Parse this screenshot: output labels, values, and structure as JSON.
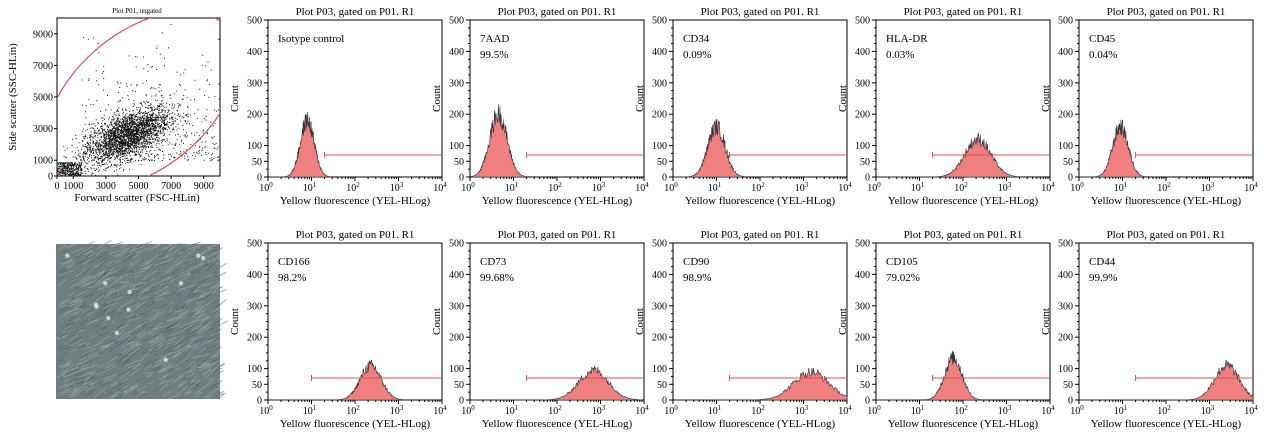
{
  "colors": {
    "histogram_fill": "#f08080",
    "gate": "#e05050",
    "dots": "#111111",
    "photo_base": "#6f7f80"
  },
  "scatter_panel": {
    "title": "Plot P01, ungated",
    "xlabel": "Forward scatter (FSC-HLin)",
    "ylabel": "Side scatter (SSC-HLin)"
  },
  "histogram_common": {
    "title": "Plot P03, gated on P01. R1",
    "xlabel": "Yellow fluorescence (YEL-HLog)",
    "ylabel": "Count"
  },
  "microscopy_image": {
    "icon": "cell-culture-photo"
  },
  "chart_data": [
    {
      "type": "scatter",
      "id": "p01",
      "title": "Plot P01, ungated",
      "xlabel": "Forward scatter (FSC-HLin)",
      "ylabel": "Side scatter (SSC-HLin)",
      "xlim": [
        0,
        10000
      ],
      "ylim": [
        0,
        10000
      ],
      "x_ticks": [
        "0",
        "1000",
        "3000",
        "5000",
        "7000",
        "9000"
      ],
      "x_tick_values": [
        0,
        1000,
        3000,
        5000,
        7000,
        9000
      ],
      "y_ticks": [
        "0",
        "1000",
        "3000",
        "5000",
        "7000",
        "9000"
      ],
      "y_tick_values": [
        0,
        1000,
        3000,
        5000,
        7000,
        9000
      ],
      "cluster": {
        "center_x": 4300,
        "center_y": 2600,
        "spread_x": 1300,
        "spread_y": 900
      },
      "gate": {
        "shape": "ellipse",
        "center_x": 5200,
        "center_y": 4800,
        "angle_deg": 40
      }
    },
    {
      "type": "histogram",
      "row": 1,
      "col": 1,
      "marker": "Isotype control",
      "percent": "",
      "peak": 8,
      "height": 180,
      "width": 0.16,
      "gate_start": 20,
      "xlim": [
        1,
        10000
      ],
      "ylim": [
        0,
        500
      ]
    },
    {
      "type": "histogram",
      "row": 1,
      "col": 2,
      "marker": "7AAD",
      "percent": "99.5%",
      "peak": 4.5,
      "height": 200,
      "width": 0.2,
      "gate_start": 20,
      "xlim": [
        1,
        10000
      ],
      "ylim": [
        0,
        500
      ]
    },
    {
      "type": "histogram",
      "row": 1,
      "col": 3,
      "marker": "CD34",
      "percent": "0.09%",
      "peak": 10,
      "height": 160,
      "width": 0.2,
      "gate_start": 20,
      "xlim": [
        1,
        10000
      ],
      "ylim": [
        0,
        500
      ]
    },
    {
      "type": "histogram",
      "row": 1,
      "col": 4,
      "marker": "HLA-DR",
      "percent": "0.03%",
      "peak": 220,
      "height": 120,
      "width": 0.3,
      "gate_start": 20,
      "xlim": [
        1,
        10000
      ],
      "ylim": [
        0,
        500
      ]
    },
    {
      "type": "histogram",
      "row": 1,
      "col": 5,
      "marker": "CD45",
      "percent": "0.04%",
      "peak": 9,
      "height": 160,
      "width": 0.18,
      "gate_start": 20,
      "xlim": [
        1,
        10000
      ],
      "ylim": [
        0,
        500
      ]
    },
    {
      "type": "histogram",
      "row": 2,
      "col": 1,
      "marker": "CD166",
      "percent": "98.2%",
      "peak": 230,
      "height": 110,
      "width": 0.24,
      "gate_start": 10,
      "xlim": [
        1,
        10000
      ],
      "ylim": [
        0,
        500
      ]
    },
    {
      "type": "histogram",
      "row": 2,
      "col": 2,
      "marker": "CD73",
      "percent": "99.68%",
      "peak": 700,
      "height": 95,
      "width": 0.34,
      "gate_start": 20,
      "xlim": [
        1,
        10000
      ],
      "ylim": [
        0,
        500
      ]
    },
    {
      "type": "histogram",
      "row": 2,
      "col": 3,
      "marker": "CD90",
      "percent": "98.9%",
      "peak": 1500,
      "height": 90,
      "width": 0.4,
      "gate_start": 20,
      "xlim": [
        1,
        10000
      ],
      "ylim": [
        0,
        500
      ]
    },
    {
      "type": "histogram",
      "row": 2,
      "col": 4,
      "marker": "CD105",
      "percent": "79.02%",
      "peak": 60,
      "height": 135,
      "width": 0.2,
      "gate_start": 20,
      "xlim": [
        1,
        10000
      ],
      "ylim": [
        0,
        500
      ]
    },
    {
      "type": "histogram",
      "row": 2,
      "col": 5,
      "marker": "CD44",
      "percent": "99.9%",
      "peak": 2500,
      "height": 110,
      "width": 0.28,
      "gate_start": 20,
      "xlim": [
        1,
        10000
      ],
      "ylim": [
        0,
        500
      ]
    }
  ]
}
